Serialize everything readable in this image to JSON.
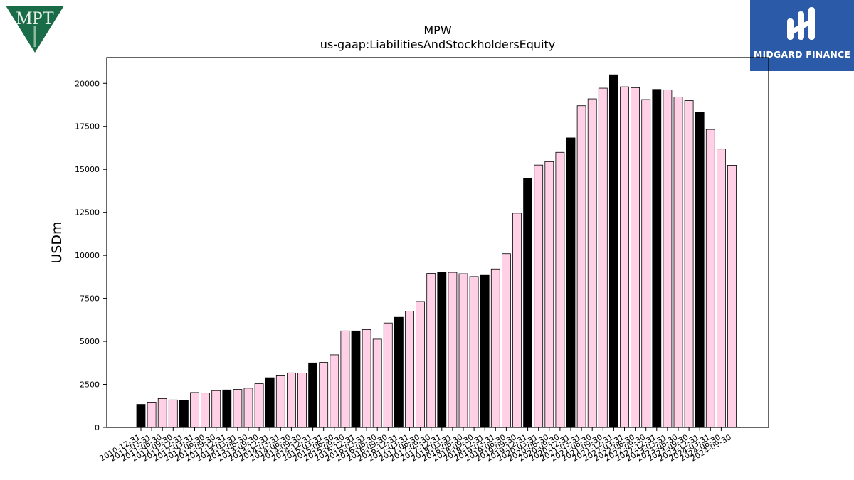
{
  "brand": {
    "company_logo_text": "MPT",
    "company_logo_color": "#1a6b47",
    "watermark_text": "MIDGARD FINANCE",
    "watermark_color": "#2a5aa8"
  },
  "chart_data": {
    "type": "bar",
    "title": "MPW",
    "subtitle": "us-gaap:LiabilitiesAndStockholdersEquity",
    "xlabel": "",
    "ylabel": "USDm",
    "ylim": [
      0,
      21500
    ],
    "yticks": [
      0,
      2500,
      5000,
      7500,
      10000,
      12500,
      15000,
      17500,
      20000
    ],
    "grid": false,
    "legend": "none",
    "colors": {
      "annual": "#000000",
      "quarterly": "#ffd0e6",
      "edge": "#000000"
    },
    "categories": [
      "2010-12-31",
      "2011-03-31",
      "2011-06-30",
      "2011-09-30",
      "2011-12-31",
      "2012-03-31",
      "2012-06-30",
      "2012-09-30",
      "2012-12-31",
      "2013-03-31",
      "2013-06-30",
      "2013-09-30",
      "2013-12-31",
      "2014-03-31",
      "2014-06-30",
      "2014-09-30",
      "2014-12-31",
      "2015-03-31",
      "2015-06-30",
      "2015-09-30",
      "2015-12-31",
      "2016-03-31",
      "2016-06-30",
      "2016-09-30",
      "2016-12-31",
      "2017-03-31",
      "2017-06-30",
      "2017-09-30",
      "2017-12-31",
      "2018-03-31",
      "2018-06-30",
      "2018-09-30",
      "2018-12-31",
      "2019-03-31",
      "2019-06-30",
      "2019-09-30",
      "2019-12-31",
      "2020-03-31",
      "2020-06-30",
      "2020-09-30",
      "2020-12-31",
      "2021-03-31",
      "2021-06-30",
      "2021-09-30",
      "2021-12-31",
      "2022-03-31",
      "2022-06-30",
      "2022-09-30",
      "2022-12-31",
      "2023-03-31",
      "2023-06-30",
      "2023-09-30",
      "2023-12-31",
      "2024-03-31",
      "2024-06-30",
      "2024-09-30"
    ],
    "values": [
      1340,
      1430,
      1680,
      1600,
      1590,
      2030,
      2000,
      2140,
      2180,
      2210,
      2280,
      2540,
      2890,
      3000,
      3170,
      3160,
      3750,
      3780,
      4220,
      5610,
      5610,
      5690,
      5130,
      6070,
      6400,
      6760,
      7320,
      8950,
      9020,
      9010,
      8930,
      8770,
      8840,
      9210,
      10100,
      12450,
      14470,
      15250,
      15450,
      15990,
      16830,
      18700,
      19100,
      19720,
      20500,
      19800,
      19750,
      19060,
      19650,
      19620,
      19210,
      19000,
      18310,
      17320,
      16180,
      15240
    ],
    "annual_flags": [
      1,
      0,
      0,
      0,
      1,
      0,
      0,
      0,
      1,
      0,
      0,
      0,
      1,
      0,
      0,
      0,
      1,
      0,
      0,
      0,
      1,
      0,
      0,
      0,
      1,
      0,
      0,
      0,
      1,
      0,
      0,
      0,
      1,
      0,
      0,
      0,
      1,
      0,
      0,
      0,
      1,
      0,
      0,
      0,
      1,
      0,
      0,
      0,
      1,
      0,
      0,
      0,
      1,
      0,
      0,
      0
    ]
  }
}
